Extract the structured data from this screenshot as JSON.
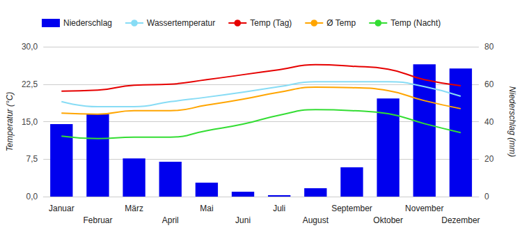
{
  "chart_data": {
    "type": "bar",
    "categories": [
      "Januar",
      "Februar",
      "März",
      "April",
      "Mai",
      "Juni",
      "Juli",
      "August",
      "September",
      "Oktober",
      "November",
      "Dezember"
    ],
    "ylabel": "Temperatur (°C)",
    "y2label": "Niederschlag (mm)",
    "ylim": [
      0,
      30
    ],
    "yticks": [
      {
        "value": 0,
        "label": "0,0"
      },
      {
        "value": 7.5,
        "label": "7,5"
      },
      {
        "value": 15,
        "label": "15,0"
      },
      {
        "value": 22.5,
        "label": "22,5"
      },
      {
        "value": 30,
        "label": "30,0"
      }
    ],
    "y2lim": [
      0,
      80
    ],
    "y2ticks": [
      0,
      20,
      40,
      60,
      80
    ],
    "grid": true,
    "legend": "top-left",
    "series": [
      {
        "name": "Niederschlag",
        "type": "bar",
        "axis": "y2",
        "color": "#0000ee",
        "values": [
          38.7,
          44,
          20.4,
          18.6,
          7.4,
          2.6,
          0.7,
          4.5,
          15.6,
          52.4,
          70.6,
          68.4
        ]
      },
      {
        "name": "Wassertemperatur",
        "type": "line",
        "color": "#87dcf5",
        "values": [
          19.0,
          18.0,
          18.0,
          19.0,
          19.9,
          20.9,
          22.0,
          23.0,
          23.0,
          23.0,
          22.0,
          20.1
        ]
      },
      {
        "name": "Temp (Tag)",
        "type": "line",
        "color": "#e60000",
        "values": [
          21.1,
          21.3,
          22.3,
          22.5,
          23.4,
          24.4,
          25.4,
          26.4,
          26.1,
          25.5,
          23.4,
          22.2
        ]
      },
      {
        "name": "Ø Temp",
        "type": "line",
        "color": "#ffa500",
        "values": [
          16.7,
          16.5,
          17.2,
          17.2,
          18.3,
          19.5,
          20.9,
          21.9,
          21.8,
          21.2,
          19.2,
          17.6
        ]
      },
      {
        "name": "Temp (Nacht)",
        "type": "line",
        "color": "#33dd33",
        "values": [
          12.1,
          11.6,
          11.9,
          11.9,
          13.2,
          14.5,
          16.3,
          17.4,
          17.2,
          16.6,
          14.6,
          12.8
        ]
      }
    ]
  }
}
